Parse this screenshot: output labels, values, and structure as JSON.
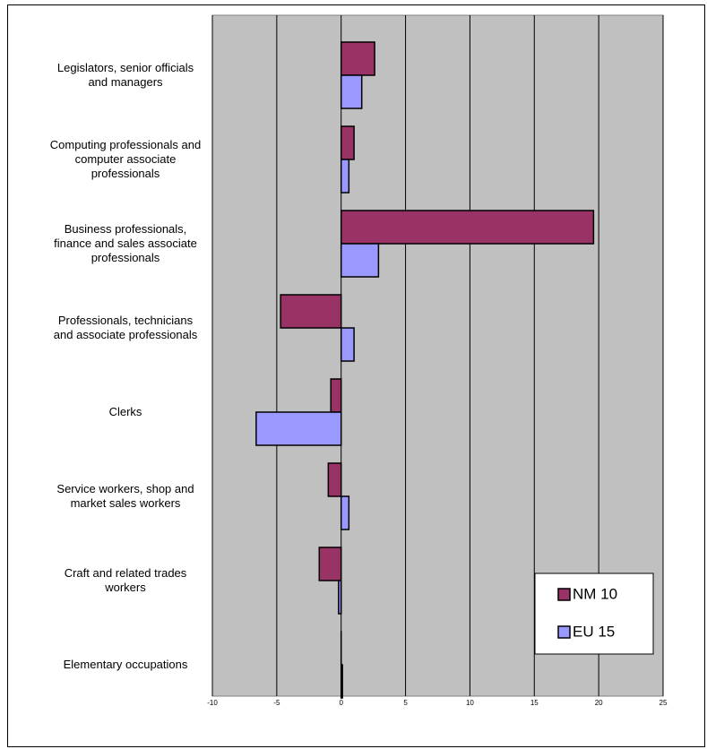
{
  "chart_data": {
    "type": "hbar",
    "categories": [
      "Legislators, senior officials and managers",
      "Computing professionals and computer associate professionals",
      "Business professionals, finance and sales associate professionals",
      "Professionals, technicians and associate professionals",
      "Clerks",
      "Service workers, shop and market sales workers",
      "Craft and related trades workers",
      "Elementary occupations"
    ],
    "series": [
      {
        "name": "NM 10",
        "color": "#993366",
        "values": [
          2.6,
          1.0,
          19.6,
          -4.7,
          -0.8,
          -1.0,
          -1.7,
          0
        ]
      },
      {
        "name": "EU 15",
        "color": "#9999ff",
        "values": [
          1.6,
          0.6,
          2.9,
          1.0,
          -6.6,
          0.6,
          -0.2,
          0.1
        ]
      }
    ],
    "xlim": [
      -10,
      25
    ],
    "xticks": [
      -10,
      -5,
      0,
      5,
      10,
      15,
      20,
      25
    ],
    "grid": true,
    "legend": "lower right"
  }
}
